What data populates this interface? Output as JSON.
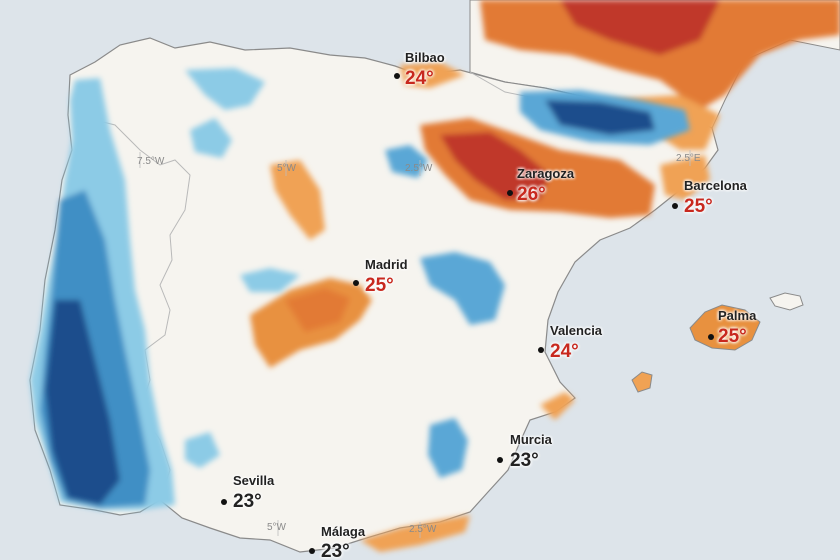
{
  "colors": {
    "sea": "#dde4ea",
    "land": "#f6f4ef",
    "border": "#b9b9b9",
    "coast": "#8a8a8a",
    "warm_light": "#f0a254",
    "warm_mid": "#e27a35",
    "warm_dark": "#c0392b",
    "cold_light": "#8ccbe6",
    "cold_mid": "#3f8fc5",
    "cold_dark": "#1f4e8c",
    "temp_red": "#c8281e",
    "temp_dark": "#222222"
  },
  "grid_labels": [
    "7.5°W",
    "5°W",
    "2.5°W",
    "2.5°E",
    "5°W",
    "2.5°W"
  ],
  "cities": [
    {
      "name": "Bilbao",
      "temp": "24°",
      "temp_color": "red"
    },
    {
      "name": "Zaragoza",
      "temp": "26°",
      "temp_color": "red"
    },
    {
      "name": "Barcelona",
      "temp": "25°",
      "temp_color": "red"
    },
    {
      "name": "Madrid",
      "temp": "25°",
      "temp_color": "red"
    },
    {
      "name": "Palma",
      "temp": "25°",
      "temp_color": "red"
    },
    {
      "name": "Valencia",
      "temp": "24°",
      "temp_color": "red"
    },
    {
      "name": "Murcia",
      "temp": "23°",
      "temp_color": "dark"
    },
    {
      "name": "Sevilla",
      "temp": "23°",
      "temp_color": "dark"
    },
    {
      "name": "Málaga",
      "temp": "23°",
      "temp_color": "dark"
    }
  ]
}
